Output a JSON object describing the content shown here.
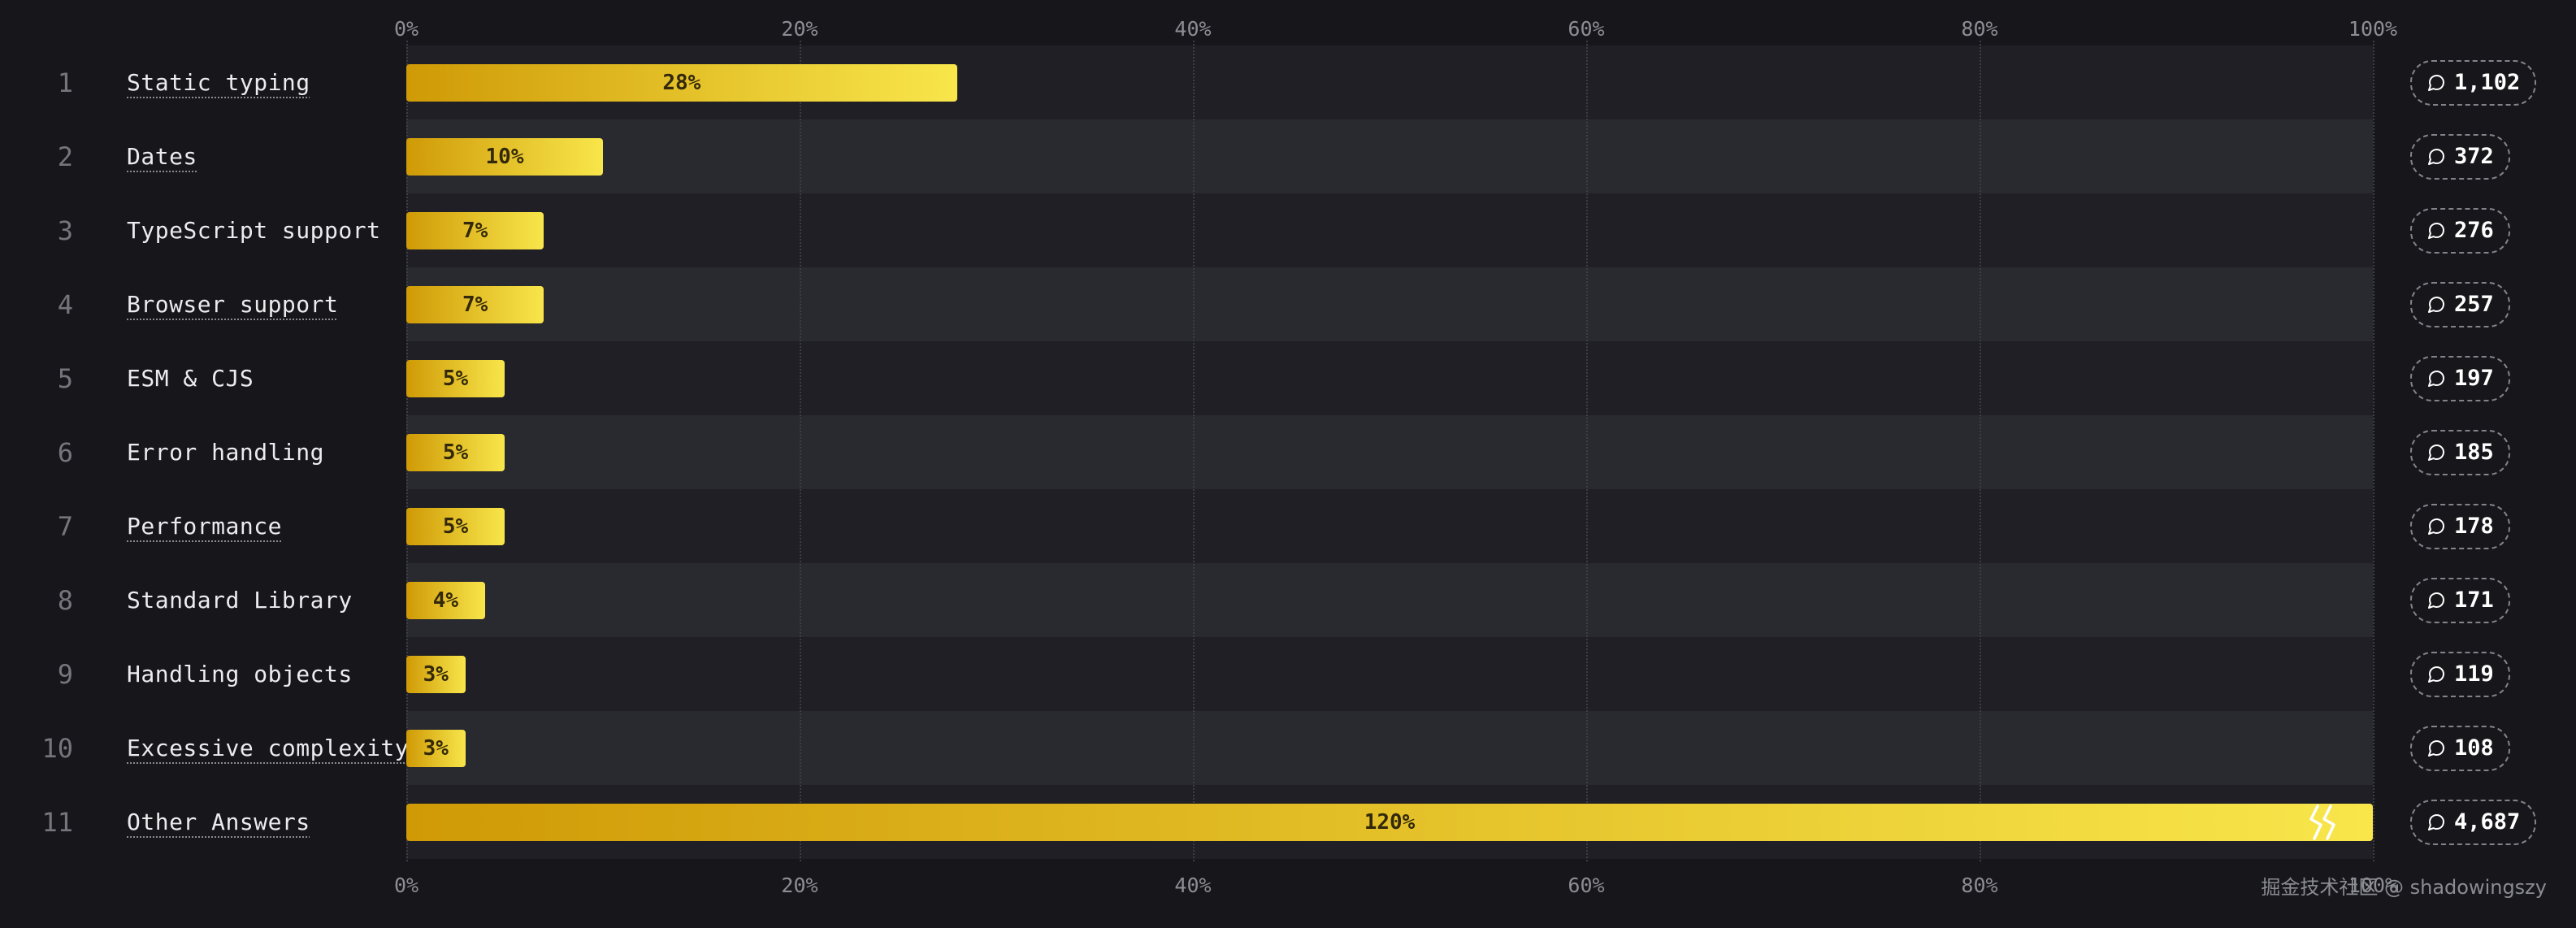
{
  "page": {
    "watermark": "掘金技术社区 @ shadowingszy"
  },
  "axis": {
    "ticks": [
      "0%",
      "20%",
      "40%",
      "60%",
      "80%",
      "100%"
    ]
  },
  "colors": {
    "background": "#17171b",
    "row_odd": "#1f1f25",
    "row_even": "#292930",
    "bar_gradient_start": "#cf9a06",
    "bar_gradient_end": "#f8e64b",
    "bar_text": "#33290a",
    "grid": "#3d3d45",
    "axis_text": "#8d8d94",
    "pill_border": "#83838b"
  },
  "chart_data": {
    "type": "bar",
    "orientation": "horizontal",
    "title": "",
    "categories": [
      "Static typing",
      "Dates",
      "TypeScript support",
      "Browser support",
      "ESM & CJS",
      "Error handling",
      "Performance",
      "Standard Library",
      "Handling objects",
      "Excessive complexity",
      "Other Answers"
    ],
    "series": [
      {
        "name": "percent",
        "values": [
          28,
          10,
          7,
          7,
          5,
          5,
          5,
          4,
          3,
          3,
          120
        ]
      },
      {
        "name": "responses",
        "values": [
          1102,
          372,
          276,
          257,
          197,
          185,
          178,
          171,
          119,
          108,
          4687
        ]
      }
    ],
    "xlabel": "",
    "ylabel": "",
    "xlim": [
      0,
      100
    ],
    "x_ticks": [
      "0%",
      "20%",
      "40%",
      "60%",
      "80%",
      "100%"
    ],
    "grid": "vertical dotted",
    "legend": "none",
    "note": "Last bar (Other Answers, 120%) exceeds the axis range and is clipped at 100% with white break marks"
  },
  "rows": [
    {
      "rank": "1",
      "label": "Static typing",
      "value_label": "28%",
      "width": 28,
      "count": "1,102",
      "underline": true
    },
    {
      "rank": "2",
      "label": "Dates",
      "value_label": "10%",
      "width": 10,
      "count": "372",
      "underline": true
    },
    {
      "rank": "3",
      "label": "TypeScript support",
      "value_label": "7%",
      "width": 7,
      "count": "276",
      "underline": false
    },
    {
      "rank": "4",
      "label": "Browser support",
      "value_label": "7%",
      "width": 7,
      "count": "257",
      "underline": true
    },
    {
      "rank": "5",
      "label": "ESM & CJS",
      "value_label": "5%",
      "width": 5,
      "count": "197",
      "underline": false
    },
    {
      "rank": "6",
      "label": "Error handling",
      "value_label": "5%",
      "width": 5,
      "count": "185",
      "underline": false
    },
    {
      "rank": "7",
      "label": "Performance",
      "value_label": "5%",
      "width": 5,
      "count": "178",
      "underline": true
    },
    {
      "rank": "8",
      "label": "Standard Library",
      "value_label": "4%",
      "width": 4,
      "count": "171",
      "underline": false
    },
    {
      "rank": "9",
      "label": "Handling objects",
      "value_label": "3%",
      "width": 3,
      "count": "119",
      "underline": false
    },
    {
      "rank": "10",
      "label": "Excessive complexity",
      "value_label": "3%",
      "width": 3,
      "count": "108",
      "underline": true
    },
    {
      "rank": "11",
      "label": "Other Answers",
      "value_label": "120%",
      "width": 100,
      "count": "4,687",
      "underline": true,
      "overflow": true
    }
  ]
}
